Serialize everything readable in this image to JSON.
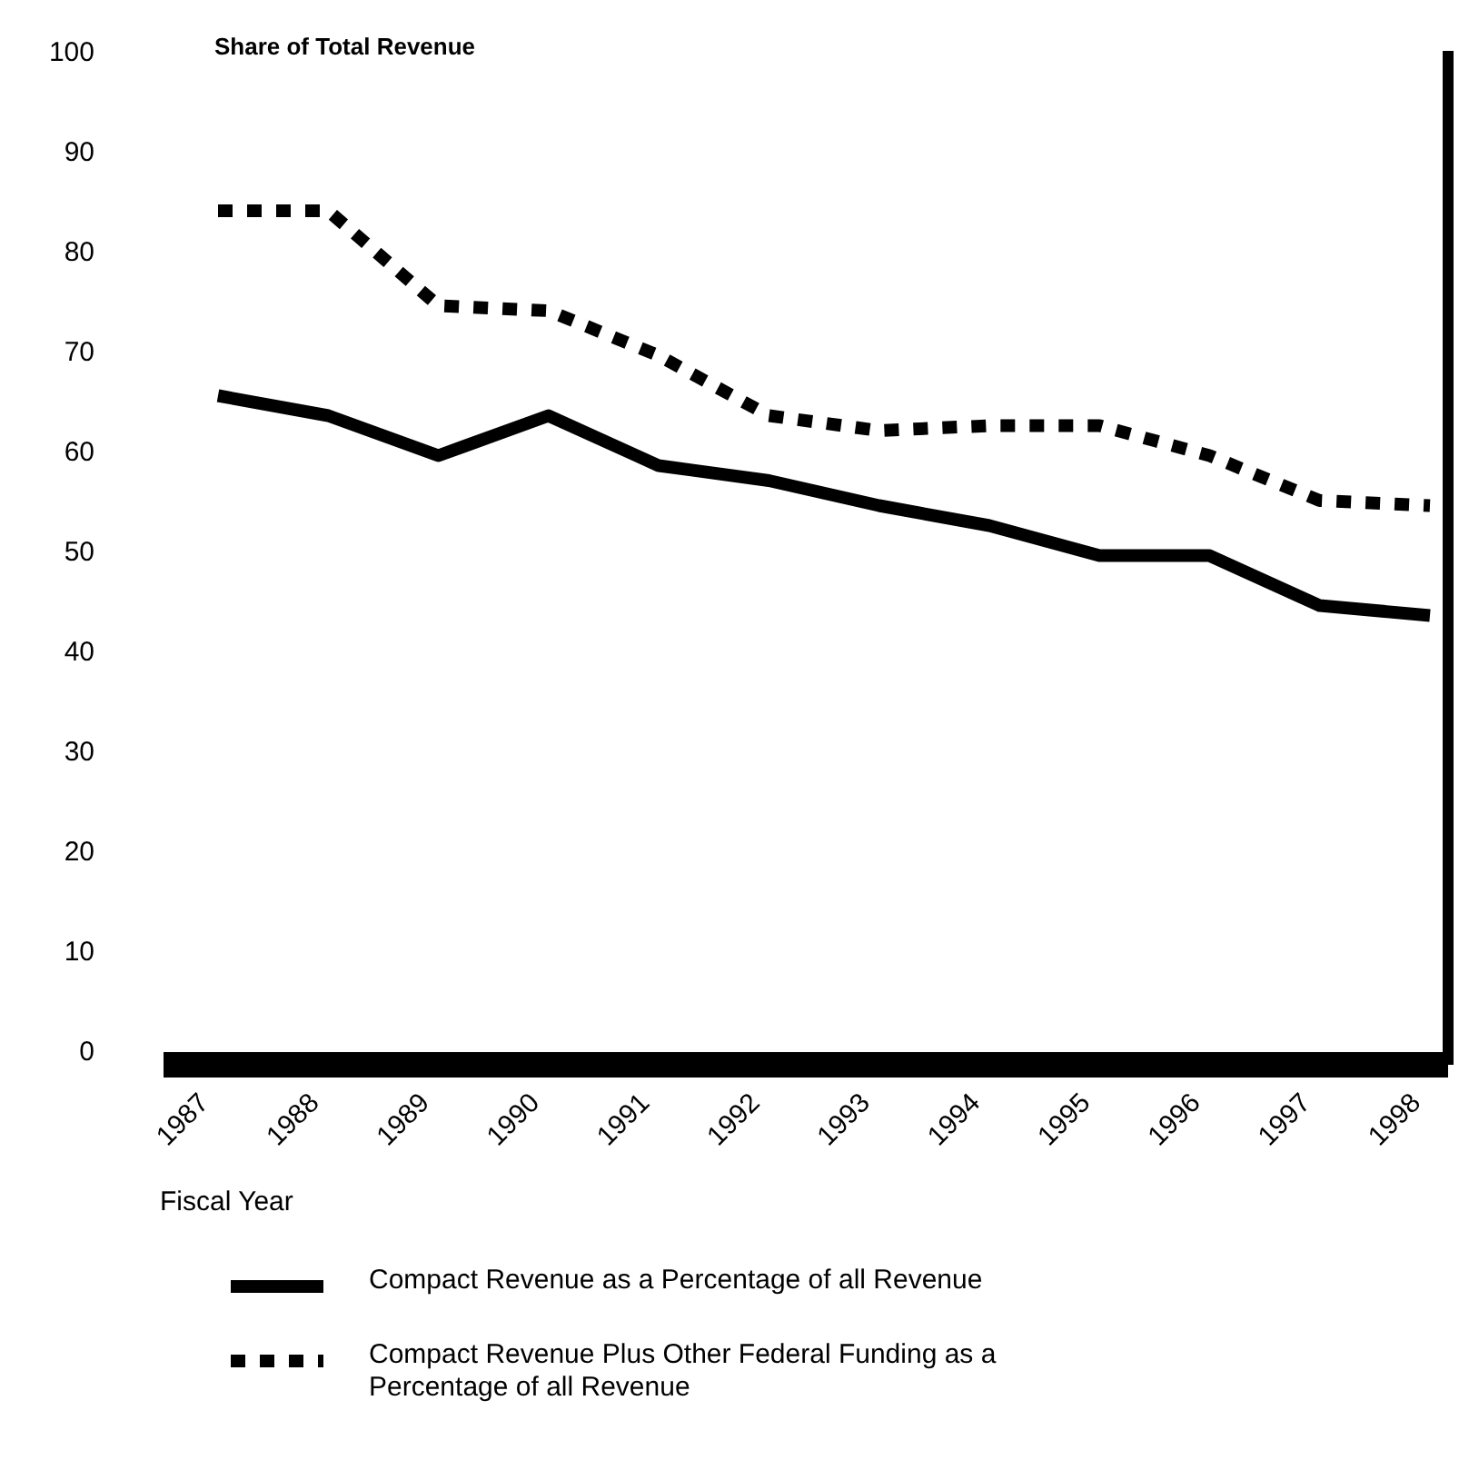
{
  "chart_data": {
    "type": "line",
    "ylabel": "Share of Total Revenue",
    "xlabel": "Fiscal Year",
    "categories": [
      "1987",
      "1988",
      "1989",
      "1990",
      "1991",
      "1992",
      "1993",
      "1994",
      "1995",
      "1996",
      "1997",
      "1998"
    ],
    "ylim": [
      0,
      100
    ],
    "yticks": [
      0,
      10,
      20,
      30,
      40,
      50,
      60,
      70,
      80,
      90,
      100
    ],
    "grid": false,
    "legend": "bottom",
    "series": [
      {
        "name": "Compact Revenue as a Percentage of all Revenue",
        "color": "#000000",
        "line_style": "solid",
        "values": [
          65.5,
          63.5,
          59.5,
          63.5,
          58.5,
          57,
          54.5,
          52.5,
          49.5,
          49.5,
          44.5,
          43.5
        ]
      },
      {
        "name": "Compact Revenue Plus Other Federal Funding as a Percentage of all Revenue",
        "color": "#000000",
        "line_style": "dotted",
        "values": [
          84,
          84,
          74.5,
          74,
          69.5,
          63.5,
          62,
          62.5,
          62.5,
          59.5,
          55,
          54.5
        ]
      }
    ]
  }
}
